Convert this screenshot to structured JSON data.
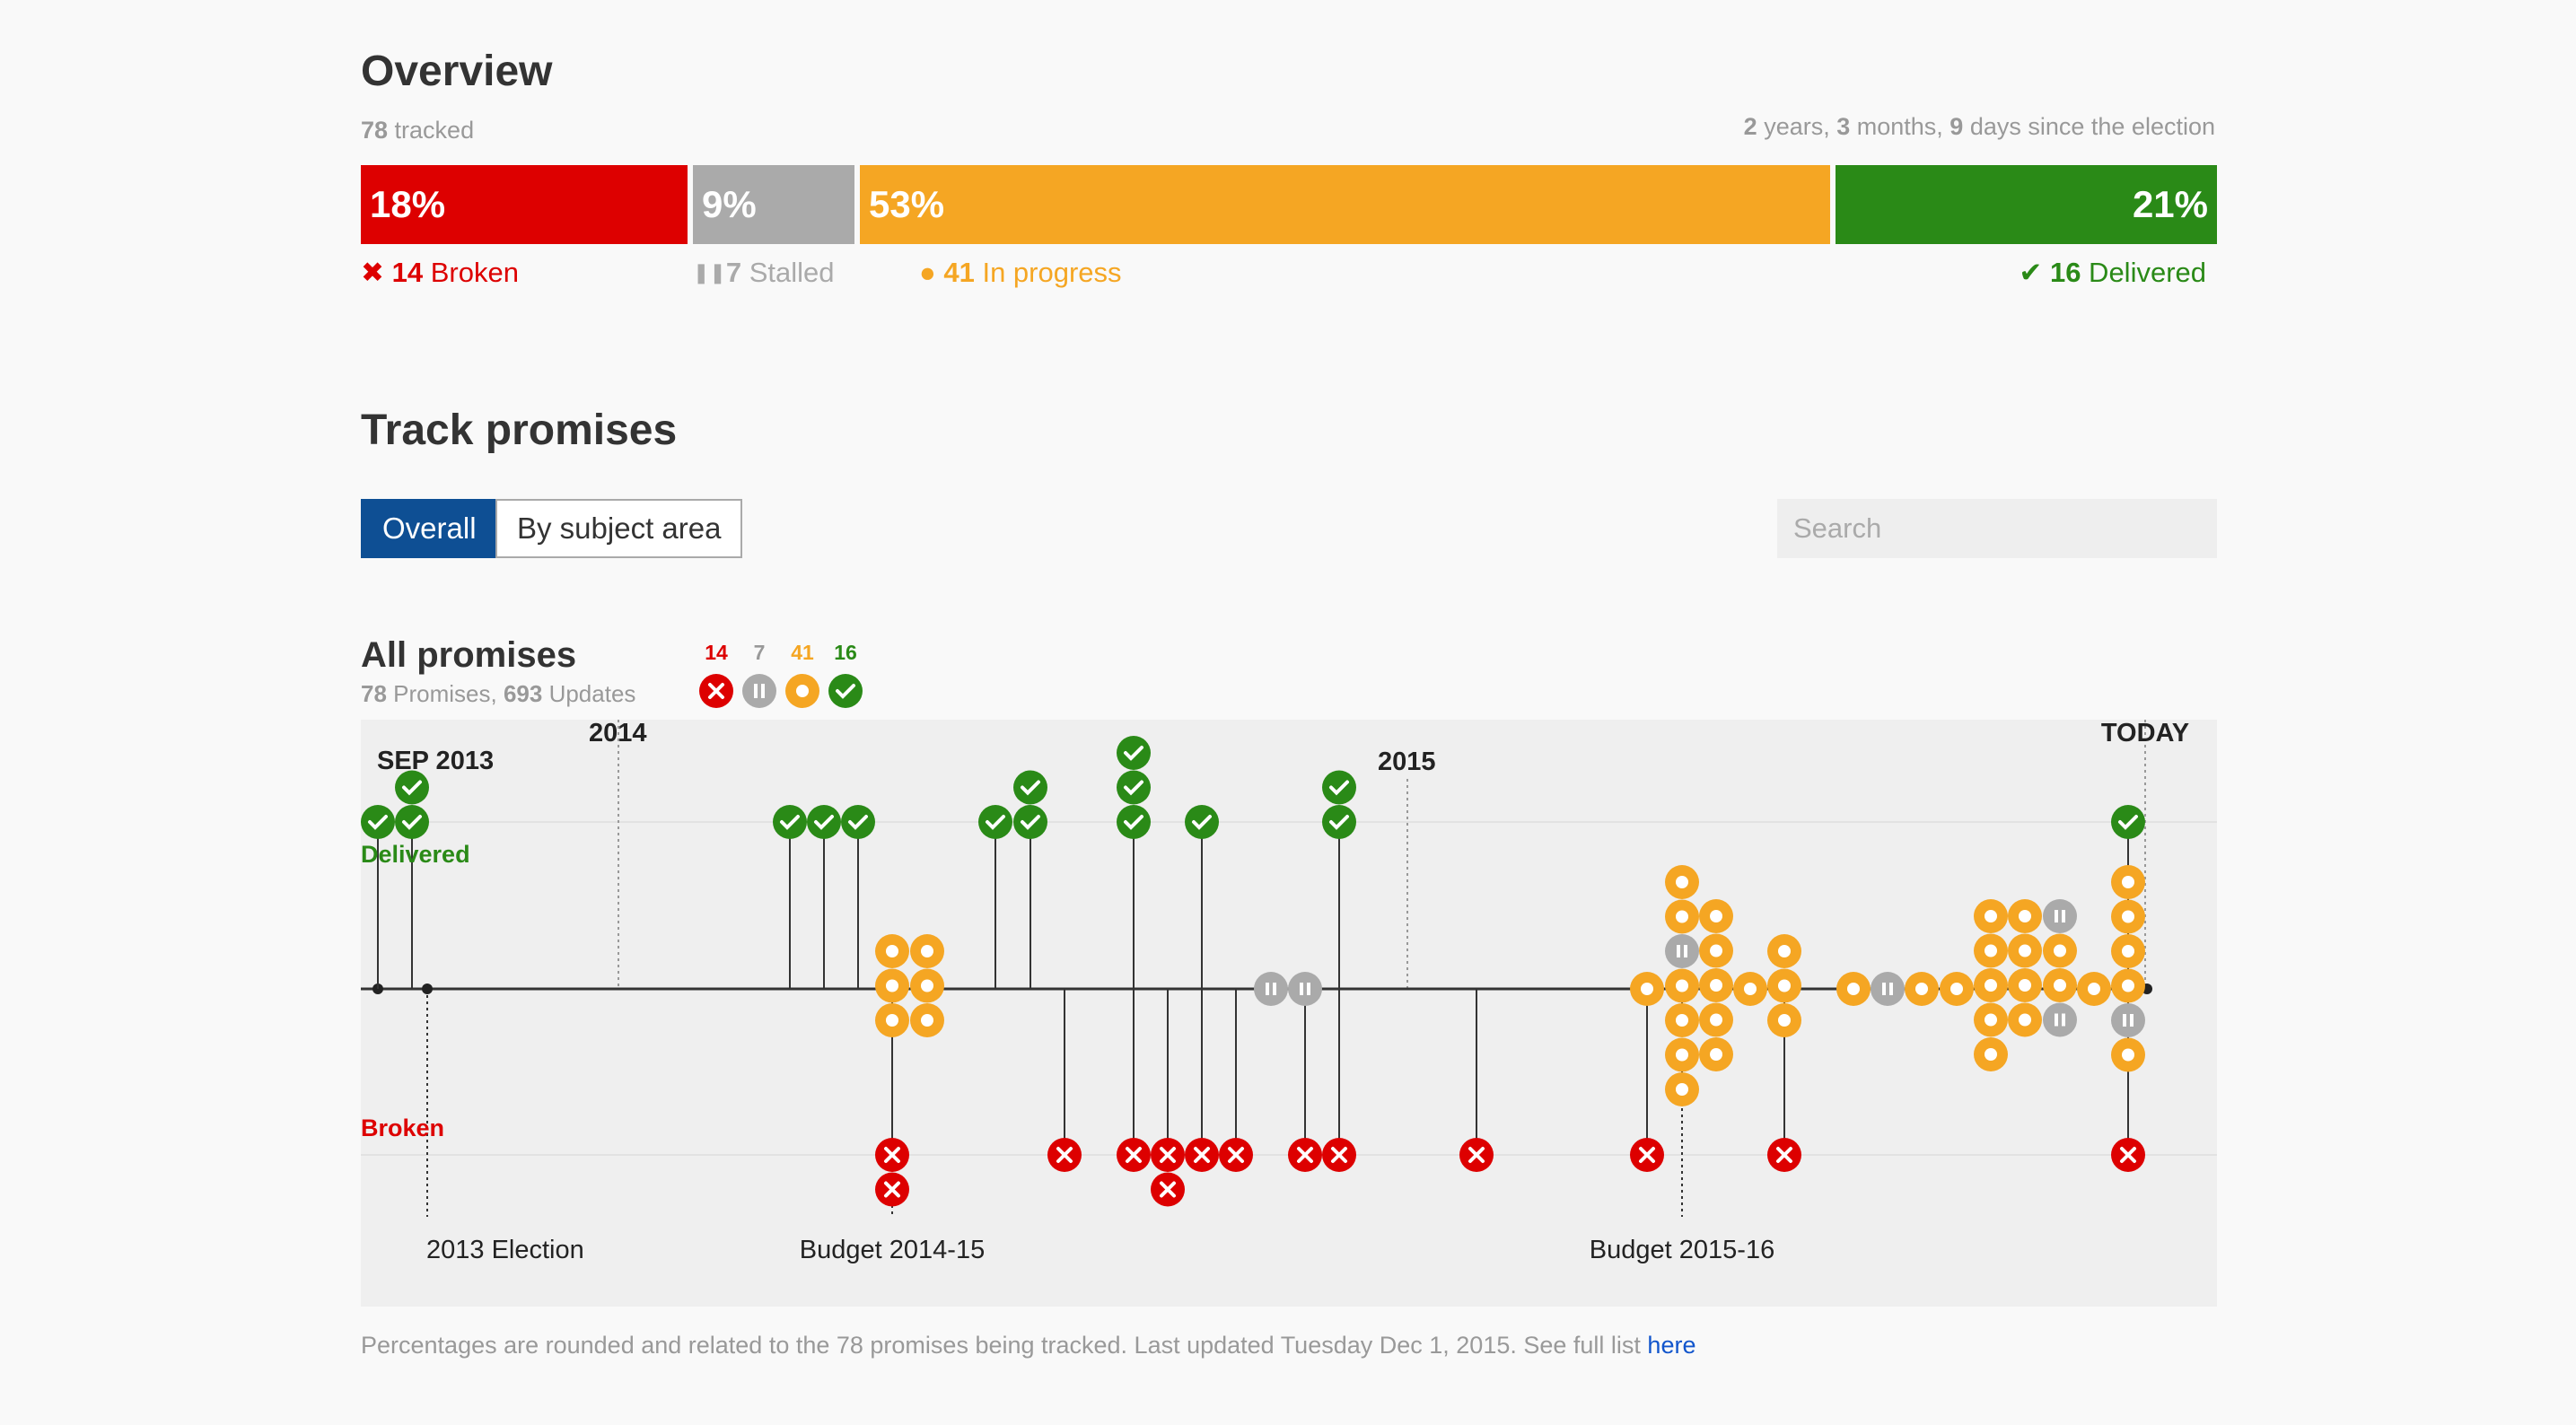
{
  "overview": {
    "title": "Overview",
    "tracked_count": "78",
    "tracked_suffix": " tracked",
    "since": {
      "years": "2",
      "years_label": " years, ",
      "months": "3",
      "months_label": " months, ",
      "days": "9",
      "days_label": " days since the election"
    },
    "bars": [
      {
        "key": "broken",
        "pct": "18%",
        "count": "14",
        "label": " Broken",
        "color": "#dd0000",
        "icon": "cross-icon",
        "fraction": 0.18
      },
      {
        "key": "stalled",
        "pct": "9%",
        "count": "7",
        "label": " Stalled",
        "color": "#aaaaaa",
        "icon": "pause-icon",
        "fraction": 0.09
      },
      {
        "key": "progress",
        "pct": "53%",
        "count": "41",
        "label": " In progress",
        "color": "#f5a623",
        "icon": "dot-icon",
        "fraction": 0.53
      },
      {
        "key": "delivered",
        "pct": "21%",
        "count": "16",
        "label": " Delivered",
        "color": "#2a8a17",
        "icon": "check-icon",
        "fraction": 0.21
      }
    ]
  },
  "track": {
    "title": "Track promises",
    "tabs": [
      {
        "label": "Overall",
        "active": true
      },
      {
        "label": "By subject area",
        "active": false
      }
    ],
    "search_placeholder": "Search"
  },
  "timeline": {
    "title": "All promises",
    "promises": "78",
    "promises_label": " Promises, ",
    "updates": "693",
    "updates_label": " Updates",
    "legend": [
      {
        "count": "14",
        "color": "#dd0000",
        "icon": "cross-icon"
      },
      {
        "count": "7",
        "color": "#999999",
        "icon": "pause-icon"
      },
      {
        "count": "41",
        "color": "#f5a623",
        "icon": "dot-icon"
      },
      {
        "count": "16",
        "color": "#2a8a17",
        "icon": "check-icon"
      }
    ],
    "year_labels": [
      "SEP 2013",
      "2014",
      "2015",
      "TODAY"
    ],
    "row_labels": {
      "delivered": "Delivered",
      "broken": "Broken"
    },
    "events": [
      "2013 Election",
      "Budget 2014-15",
      "Budget 2015-16"
    ]
  },
  "footer": {
    "text": "Percentages are rounded and related to the 78 promises being tracked. Last updated Tuesday Dec 1, 2015. See full list ",
    "link": "here"
  }
}
